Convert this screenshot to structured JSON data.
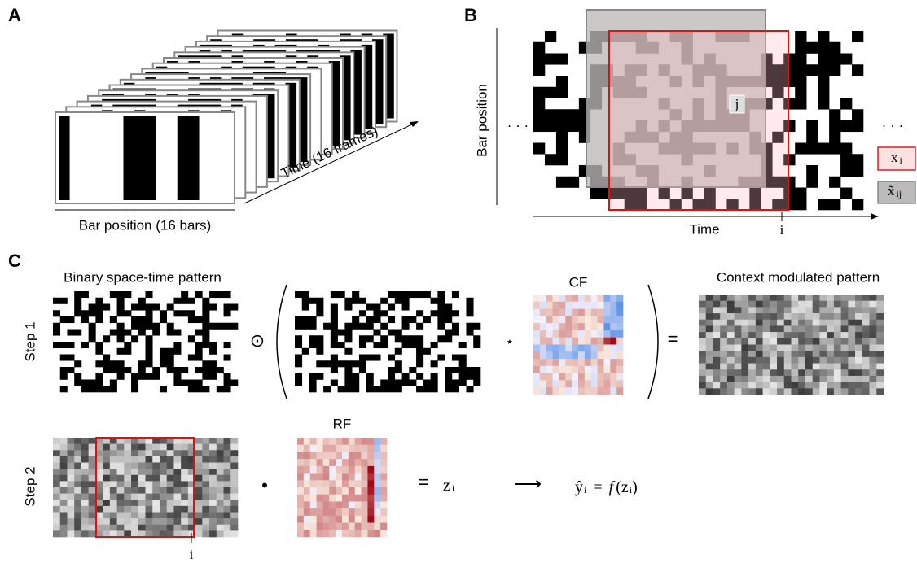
{
  "panels": {
    "a": {
      "label": "A",
      "x_axis": "Bar position (16 bars)",
      "time_axis": "Time (16 frames)"
    },
    "b": {
      "label": "B",
      "y_axis": "Bar position",
      "x_axis": "Time",
      "ellipsis": "· · ·",
      "i": "i",
      "j": "j",
      "legend": [
        {
          "base": "x",
          "sub": "i"
        },
        {
          "base": "x̃",
          "sub": "ij"
        }
      ]
    },
    "c": {
      "label": "C",
      "step1": {
        "label": "Step 1",
        "input_title": "Binary space-time pattern",
        "hadamard": "⊙",
        "conv": "⋆",
        "cf": "CF",
        "equals": "=",
        "output_title": "Context modulated pattern"
      },
      "step2": {
        "label": "Step 2",
        "i": "i",
        "dot": "•",
        "rf": "RF",
        "equals": "=",
        "z": {
          "base": "z",
          "sub": "i"
        },
        "arrow": "⟶",
        "formula": {
          "yhat": "ŷ",
          "sub": "i",
          "equals": "=",
          "f": "f",
          "open": "(",
          "z": "z",
          "zsub": "i",
          "close": ")"
        }
      }
    }
  }
}
